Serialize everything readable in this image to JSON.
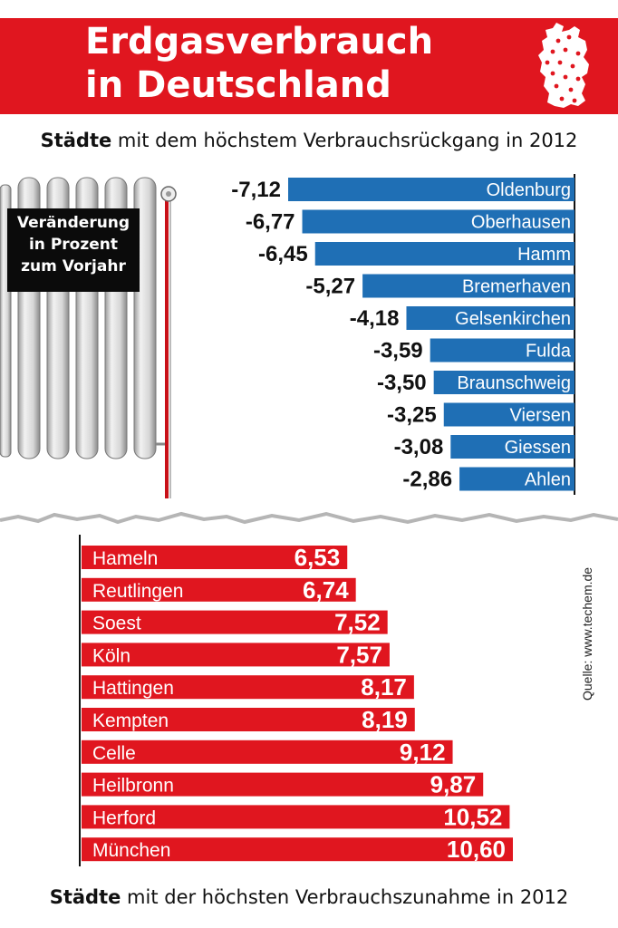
{
  "header": {
    "title_line1": "Erdgasverbrauch",
    "title_line2": "in Deutschland",
    "color": "#e0161f"
  },
  "legend_box": {
    "line1": "Veränderung",
    "line2": "in Prozent",
    "line3": "zum Vorjahr"
  },
  "source": "Quelle: www.techem.de",
  "chart_data": [
    {
      "type": "bar",
      "orientation": "horizontal",
      "title_bold": "Städte",
      "title_rest": " mit dem höchstem Verbrauchsrückgang in 2012",
      "color": "#1f6fb5",
      "categories": [
        "Oldenburg",
        "Oberhausen",
        "Hamm",
        "Bremerhaven",
        "Gelsenkirchen",
        "Fulda",
        "Braunschweig",
        "Viersen",
        "Giessen",
        "Ahlen"
      ],
      "values": [
        -7.12,
        -6.77,
        -6.45,
        -5.27,
        -4.18,
        -3.59,
        -3.5,
        -3.25,
        -3.08,
        -2.86
      ],
      "value_labels": [
        "-7,12",
        "-6,77",
        "-6,45",
        "-5,27",
        "-4,18",
        "-3,59",
        "-3,50",
        "-3,25",
        "-3,08",
        "-2,86"
      ]
    },
    {
      "type": "bar",
      "orientation": "horizontal",
      "title_bold": "Städte",
      "title_rest": " mit der höchsten Verbrauchszunahme in 2012",
      "color": "#e0161f",
      "categories": [
        "Hameln",
        "Reutlingen",
        "Soest",
        "Köln",
        "Hattingen",
        "Kempten",
        "Celle",
        "Heilbronn",
        "Herford",
        "München"
      ],
      "values": [
        6.53,
        6.74,
        7.52,
        7.57,
        8.17,
        8.19,
        9.12,
        9.87,
        10.52,
        10.6
      ],
      "value_labels": [
        "6,53",
        "6,74",
        "7,52",
        "7,57",
        "8,17",
        "8,19",
        "9,12",
        "9,87",
        "10,52",
        "10,60"
      ]
    }
  ]
}
